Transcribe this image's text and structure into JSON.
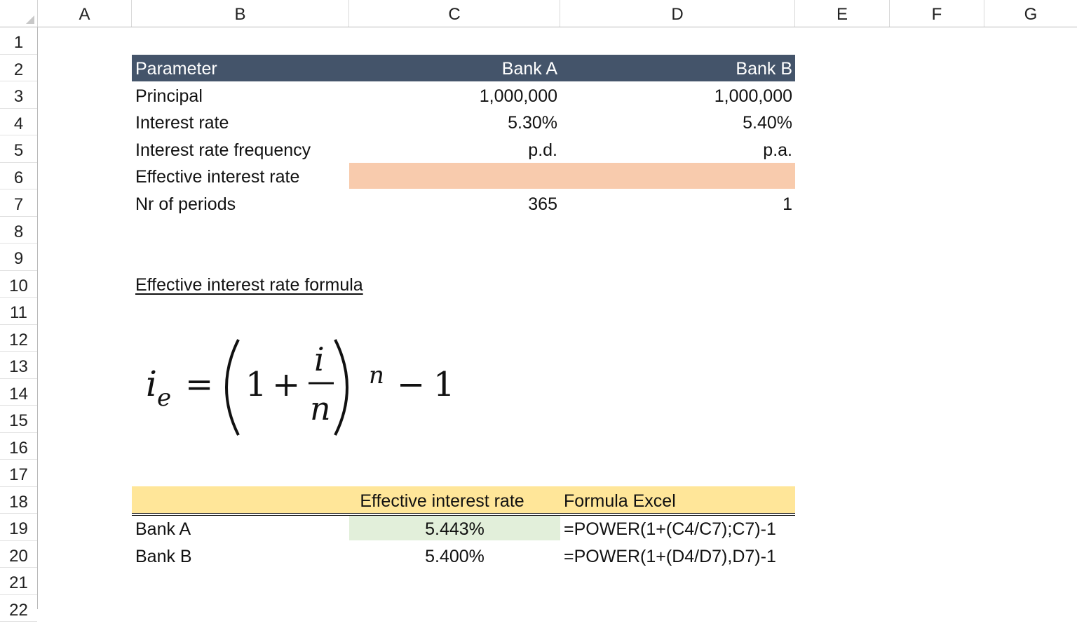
{
  "columns": [
    "A",
    "B",
    "C",
    "D",
    "E",
    "F",
    "G"
  ],
  "rows": [
    "1",
    "2",
    "3",
    "4",
    "5",
    "6",
    "7",
    "8",
    "9",
    "10",
    "11",
    "12",
    "13",
    "14",
    "15",
    "16",
    "17",
    "18",
    "19",
    "20",
    "21",
    "22"
  ],
  "table1": {
    "header": {
      "parameter": "Parameter",
      "bank_a": "Bank A",
      "bank_b": "Bank B"
    },
    "rows": [
      {
        "label": "Principal",
        "bank_a": "1,000,000",
        "bank_b": "1,000,000"
      },
      {
        "label": "Interest rate",
        "bank_a": "5.30%",
        "bank_b": "5.40%"
      },
      {
        "label": "Interest rate frequency",
        "bank_a": "p.d.",
        "bank_b": "p.a."
      },
      {
        "label": "Effective interest rate",
        "bank_a": "",
        "bank_b": ""
      },
      {
        "label": "Nr of periods",
        "bank_a": "365",
        "bank_b": "1"
      }
    ]
  },
  "formula_section": {
    "title": "Effective interest rate formula",
    "formula": {
      "lhs_var": "i",
      "lhs_sub": "e",
      "eq": "=",
      "one": "1",
      "plus": "+",
      "num": "i",
      "den": "n",
      "exp": "n",
      "minus": "−",
      "tail": "1"
    }
  },
  "table2": {
    "header": {
      "blank": "",
      "effective": "Effective interest rate",
      "formula": "Formula Excel"
    },
    "rows": [
      {
        "label": "Bank A",
        "value": "5.443%",
        "formula": "=POWER(1+(C4/C7);C7)-1"
      },
      {
        "label": "Bank B",
        "value": "5.400%",
        "formula": "=POWER(1+(D4/D7),D7)-1"
      }
    ]
  },
  "colors": {
    "header_bg": "#44546a",
    "peach": "#f8cbad",
    "yellow": "#ffe699",
    "green": "#e2efda"
  }
}
